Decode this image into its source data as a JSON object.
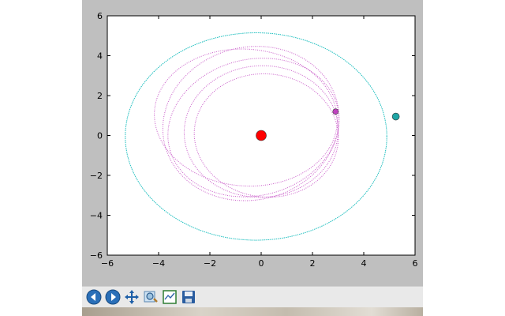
{
  "window": {
    "toolbar": {
      "buttons": [
        {
          "name": "back-button",
          "icon": "arrow-left-icon"
        },
        {
          "name": "forward-button",
          "icon": "arrow-right-icon"
        },
        {
          "name": "pan-button",
          "icon": "move-arrows-icon"
        },
        {
          "name": "zoom-button",
          "icon": "zoom-rectangle-icon"
        },
        {
          "name": "configure-subplots-button",
          "icon": "subplots-icon"
        },
        {
          "name": "save-button",
          "icon": "floppy-disk-icon"
        }
      ]
    }
  },
  "chart_data": {
    "type": "scatter",
    "title": "",
    "xlabel": "",
    "ylabel": "",
    "xlim": [
      -6,
      6
    ],
    "ylim": [
      -6,
      6
    ],
    "xticks": [
      -6,
      -4,
      -2,
      0,
      2,
      4,
      6
    ],
    "yticks": [
      -6,
      -4,
      -2,
      0,
      2,
      4,
      6
    ],
    "xtick_labels": [
      "−6",
      "−4",
      "−2",
      "0",
      "2",
      "4",
      "6"
    ],
    "ytick_labels": [
      "−6",
      "−4",
      "−2",
      "0",
      "2",
      "4",
      "6"
    ],
    "grid": false,
    "central_body": {
      "x": 0,
      "y": 0,
      "color": "#ff0000"
    },
    "outer_orbit": {
      "color": "#1fbfbf",
      "center": [
        -0.2,
        -0.05
      ],
      "semi_axes": [
        5.1,
        5.2
      ],
      "body": {
        "x": 5.25,
        "y": 0.95,
        "color": "#1fa5a5"
      }
    },
    "inner_orbit": {
      "color": "#bf3fbf",
      "loops": [
        {
          "center": [
            -0.4,
            0.6
          ],
          "semi_axes": [
            3.4,
            3.9
          ],
          "tilt_deg": -15
        },
        {
          "center": [
            0.0,
            0.2
          ],
          "semi_axes": [
            3.0,
            3.3
          ],
          "tilt_deg": -5
        },
        {
          "center": [
            -0.6,
            0.9
          ],
          "semi_axes": [
            3.6,
            3.4
          ],
          "tilt_deg": -25
        },
        {
          "center": [
            0.2,
            0.0
          ],
          "semi_axes": [
            2.8,
            3.1
          ],
          "tilt_deg": 10
        },
        {
          "center": [
            -0.3,
            0.4
          ],
          "semi_axes": [
            3.2,
            3.6
          ],
          "tilt_deg": -35
        }
      ],
      "body": {
        "x": 2.9,
        "y": 1.2,
        "color": "#bf3fbf"
      }
    }
  }
}
